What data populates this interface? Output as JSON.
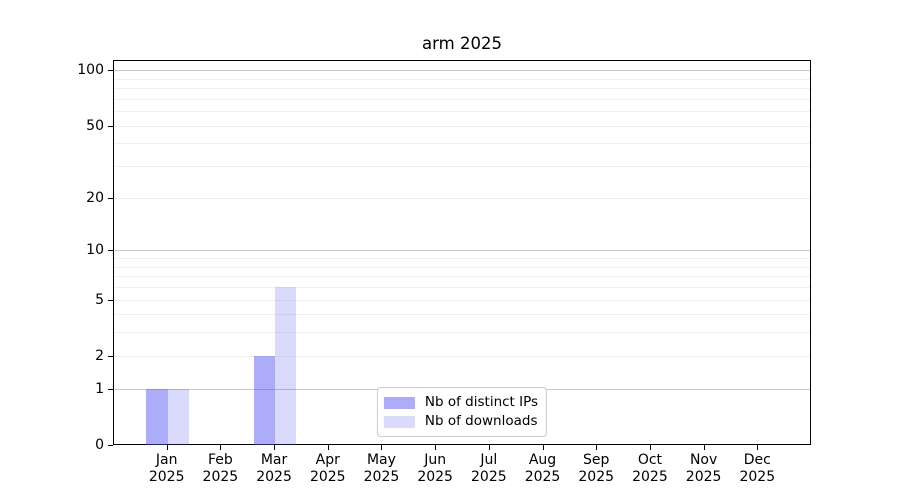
{
  "chart_data": {
    "type": "bar",
    "title": "arm 2025",
    "categories": [
      "Jan 2025",
      "Feb 2025",
      "Mar 2025",
      "Apr 2025",
      "May 2025",
      "Jun 2025",
      "Jul 2025",
      "Aug 2025",
      "Sep 2025",
      "Oct 2025",
      "Nov 2025",
      "Dec 2025"
    ],
    "category_months": [
      "Jan",
      "Feb",
      "Mar",
      "Apr",
      "May",
      "Jun",
      "Jul",
      "Aug",
      "Sep",
      "Oct",
      "Nov",
      "Dec"
    ],
    "category_year": "2025",
    "series": [
      {
        "name": "Nb of distinct IPs",
        "values": [
          1,
          0,
          2,
          0,
          0,
          0,
          0,
          0,
          0,
          0,
          0,
          0
        ],
        "color": "rgba(70,70,240,0.45)",
        "swatch_color": "#acacf8"
      },
      {
        "name": "Nb of downloads",
        "values": [
          1,
          0,
          6,
          0,
          0,
          0,
          0,
          0,
          0,
          0,
          0,
          0
        ],
        "color": "rgba(70,70,240,0.20)",
        "swatch_color": "#dadafc"
      }
    ],
    "y_axis": {
      "tick_values": [
        0,
        1,
        2,
        5,
        10,
        20,
        50,
        100
      ],
      "scale": "log1p",
      "range_max": 113,
      "major_gridlines": [
        1,
        10,
        100
      ],
      "minor_gridlines": [
        2,
        3,
        4,
        5,
        6,
        7,
        8,
        9,
        20,
        30,
        40,
        50,
        60,
        70,
        80,
        90
      ]
    },
    "legend": {
      "position": "lower center"
    },
    "grid": true,
    "colors": {
      "axis": "#000000",
      "text": "#000000",
      "major_grid": "#c9c9c9",
      "minor_grid": "#f0f0f0",
      "legend_border": "#cccccc",
      "bar_dark": "#acacf8",
      "bar_light": "#dadafc"
    }
  }
}
